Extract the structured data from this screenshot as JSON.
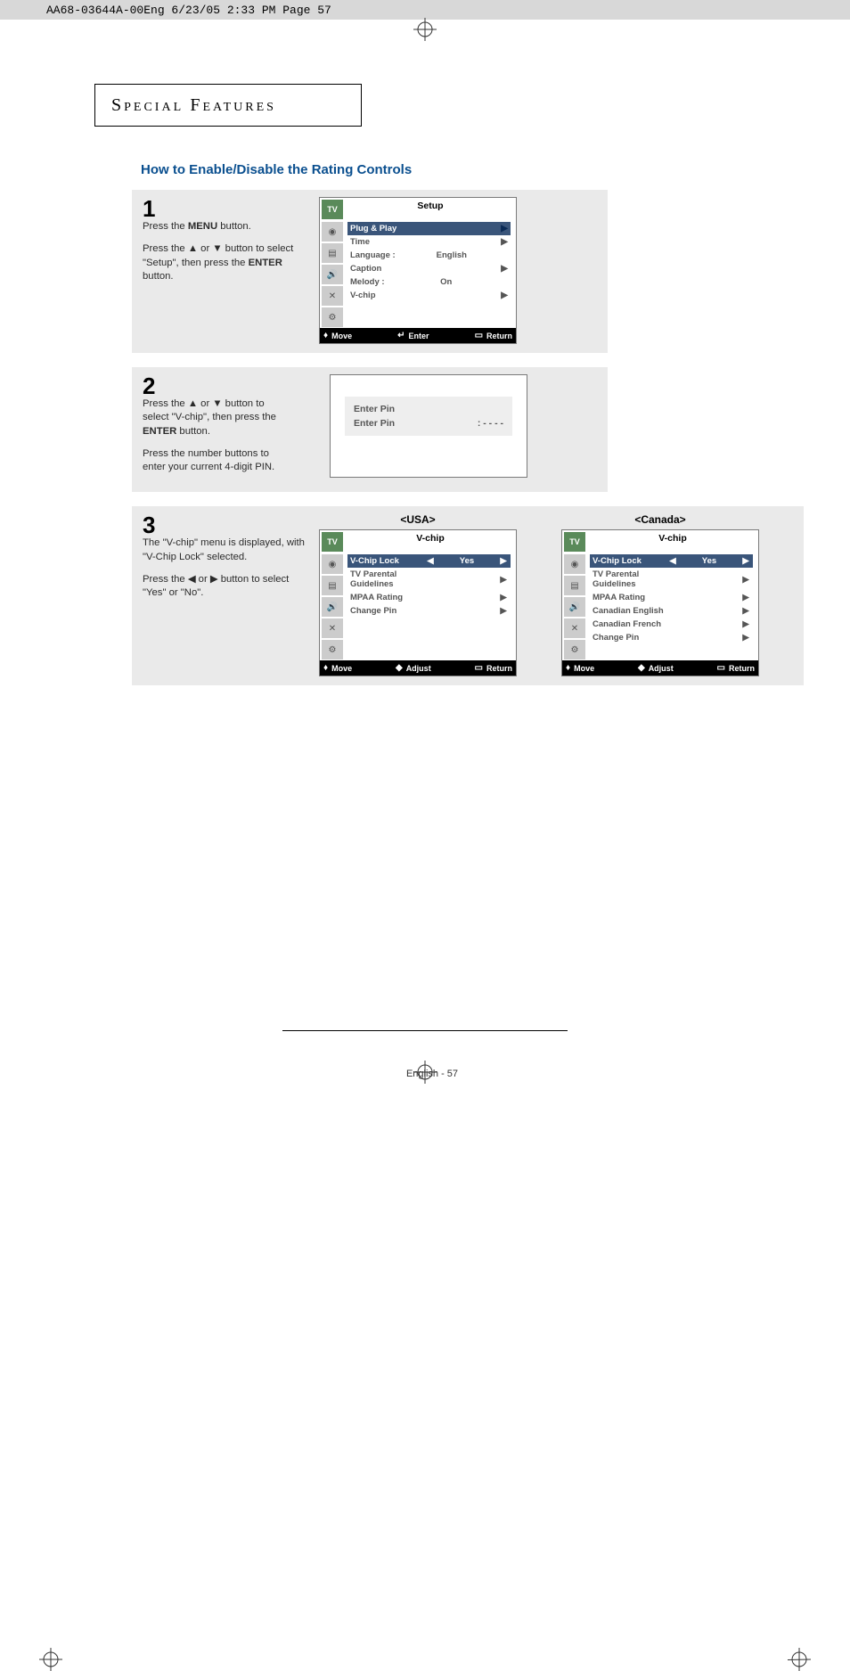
{
  "print_header": "AA68-03644A-00Eng  6/23/05  2:33 PM  Page 57",
  "section_header": "SPECIAL FEATURES",
  "section_header_smallcaps_first": [
    "S",
    "PECIAL",
    " F",
    "EATURES"
  ],
  "subsection_title": "How to Enable/Disable the Rating Controls",
  "steps": {
    "s1": {
      "num": "1",
      "p1_a": "Press the ",
      "p1_b": "MENU",
      "p1_c": " button.",
      "p2_a": "Press the ▲ or ▼ button to select \"Setup\", then press the ",
      "p2_b": "ENTER",
      "p2_c": " button."
    },
    "s2": {
      "num": "2",
      "p1_a": "Press the ▲ or ▼ button to  select  \"V-chip\", then press the ",
      "p1_b": "ENTER",
      "p1_c": " button.",
      "p2": "Press the number buttons to enter your current 4-digit PIN."
    },
    "s3": {
      "num": "3",
      "p1": "The \"V-chip\" menu is displayed, with \"V-Chip Lock\" selected.",
      "p2": "Press the ◀ or ▶ button to select  \"Yes\" or \"No\"."
    }
  },
  "osd_setup": {
    "title": "Setup",
    "tv_label": "TV",
    "icons": [
      "◉",
      "▤",
      "🔊",
      "✕",
      "⚙"
    ],
    "rows": [
      {
        "label": "Plug & Play",
        "value": "",
        "sel": true,
        "right": "▶"
      },
      {
        "label": "Time",
        "value": "",
        "sel": false,
        "right": "▶"
      },
      {
        "label": "Language :",
        "value": "English",
        "sel": false,
        "right": ""
      },
      {
        "label": "Caption",
        "value": "",
        "sel": false,
        "right": "▶"
      },
      {
        "label": "Melody    :",
        "value": "On",
        "sel": false,
        "right": ""
      },
      {
        "label": "V-chip",
        "value": "",
        "sel": false,
        "right": "▶"
      }
    ],
    "bottom": {
      "move": "Move",
      "enter": "Enter",
      "return": "Return"
    }
  },
  "pin": {
    "title": "Enter Pin",
    "label": "Enter Pin",
    "value": ": - - - -"
  },
  "region_usa": {
    "label": "<USA>",
    "title": "V-chip",
    "tv_label": "TV",
    "icons": [
      "◉",
      "▤",
      "🔊",
      "✕",
      "⚙"
    ],
    "rows": [
      {
        "label": "V-Chip Lock",
        "left": "◀",
        "value": "Yes",
        "right": "▶",
        "sel": true
      },
      {
        "label": "TV Parental Guidelines",
        "left": "",
        "value": "",
        "right": "▶",
        "sel": false
      },
      {
        "label": "MPAA Rating",
        "left": "",
        "value": "",
        "right": "▶",
        "sel": false
      },
      {
        "label": "Change Pin",
        "left": "",
        "value": "",
        "right": "▶",
        "sel": false
      }
    ],
    "bottom": {
      "move": "Move",
      "adjust": "Adjust",
      "return": "Return"
    }
  },
  "region_canada": {
    "label": "<Canada>",
    "title": "V-chip",
    "tv_label": "TV",
    "icons": [
      "◉",
      "▤",
      "🔊",
      "✕",
      "⚙"
    ],
    "rows": [
      {
        "label": "V-Chip Lock",
        "left": "◀",
        "value": "Yes",
        "right": "▶",
        "sel": true
      },
      {
        "label": "TV Parental Guidelines",
        "left": "",
        "value": "",
        "right": "▶",
        "sel": false
      },
      {
        "label": "MPAA Rating",
        "left": "",
        "value": "",
        "right": "▶",
        "sel": false
      },
      {
        "label": "Canadian English",
        "left": "",
        "value": "",
        "right": "▶",
        "sel": false
      },
      {
        "label": "Canadian French",
        "left": "",
        "value": "",
        "right": "▶",
        "sel": false
      },
      {
        "label": "Change Pin",
        "left": "",
        "value": "",
        "right": "▶",
        "sel": false
      }
    ],
    "bottom": {
      "move": "Move",
      "adjust": "Adjust",
      "return": "Return"
    }
  },
  "footer": "English - 57",
  "colors": {
    "heading_blue": "#0a4f8f",
    "step_bg": "#eaeaea",
    "osd_sel_bg": "#3a557a",
    "osd_tv_bg": "#5a8a5a",
    "osd_bottom_bg": "#000000",
    "text_muted": "#555555"
  }
}
